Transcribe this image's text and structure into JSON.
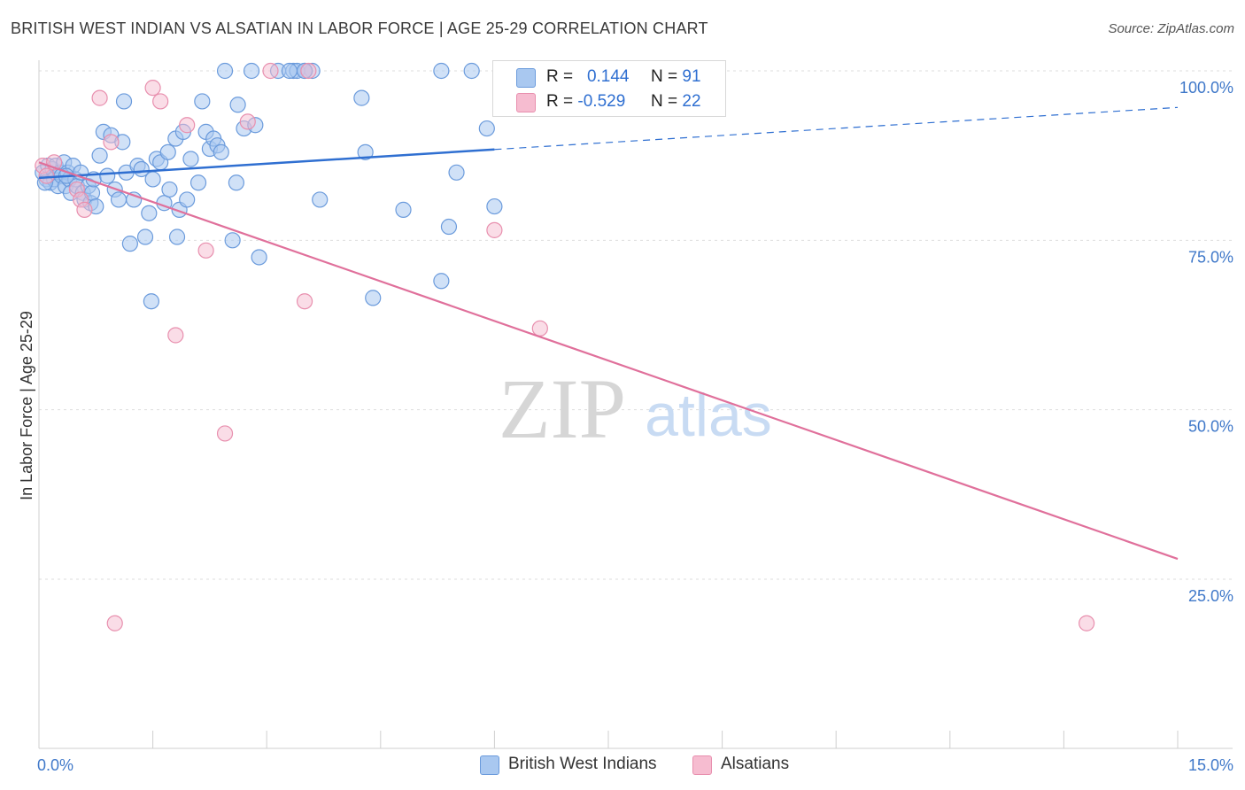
{
  "title": "BRITISH WEST INDIAN VS ALSATIAN IN LABOR FORCE | AGE 25-29 CORRELATION CHART",
  "source": "Source: ZipAtlas.com",
  "watermark": {
    "zip": "ZIP",
    "atlas": "atlas"
  },
  "colors": {
    "blue_fill": "#a9c8f0",
    "blue_stroke": "#6b9bdc",
    "blue_line": "#2f6fd1",
    "pink_fill": "#f6bcd0",
    "pink_stroke": "#e88fae",
    "pink_line": "#e0709b",
    "axis_text": "#3f78c9",
    "grid": "#dddddd"
  },
  "legend": {
    "series1": {
      "r_label": "R =",
      "r_value": "0.144",
      "n_label": "N =",
      "n_value": "91"
    },
    "series2": {
      "r_label": "R =",
      "r_value": "-0.529",
      "n_label": "N =",
      "n_value": "22"
    }
  },
  "bottom_legend": [
    "British West Indians",
    "Alsatians"
  ],
  "chart_data": {
    "type": "scatter",
    "title": "BRITISH WEST INDIAN VS ALSATIAN IN LABOR FORCE | AGE 25-29 CORRELATION CHART",
    "xlabel": "",
    "ylabel": "In Labor Force | Age 25-29",
    "xlim": [
      0,
      15
    ],
    "ylim": [
      0,
      105
    ],
    "x_tick_labels": [
      "0.0%",
      "15.0%"
    ],
    "y_ticks": [
      25,
      50,
      75,
      100
    ],
    "y_tick_labels": [
      "25.0%",
      "50.0%",
      "75.0%",
      "100.0%"
    ],
    "legend_position": "top-center",
    "grid": true,
    "series": [
      {
        "name": "British West Indians",
        "R": 0.144,
        "N": 91,
        "trend": {
          "x0": 0,
          "y0": 84.2,
          "x1": 6.0,
          "y1": 88.4,
          "dashed_to_x": 15,
          "dashed_to_y": 94.6
        },
        "points": [
          [
            0.05,
            85
          ],
          [
            0.1,
            84
          ],
          [
            0.12,
            86
          ],
          [
            0.15,
            83.5
          ],
          [
            0.18,
            85.5
          ],
          [
            0.2,
            84
          ],
          [
            0.22,
            86
          ],
          [
            0.25,
            83
          ],
          [
            0.28,
            85
          ],
          [
            0.3,
            84.5
          ],
          [
            0.33,
            86.5
          ],
          [
            0.35,
            83
          ],
          [
            0.38,
            85
          ],
          [
            0.4,
            84
          ],
          [
            0.42,
            82
          ],
          [
            0.45,
            86
          ],
          [
            0.48,
            84
          ],
          [
            0.5,
            83
          ],
          [
            0.55,
            85
          ],
          [
            0.58,
            82
          ],
          [
            0.6,
            81
          ],
          [
            0.65,
            83
          ],
          [
            0.68,
            80.5
          ],
          [
            0.7,
            82
          ],
          [
            0.72,
            84
          ],
          [
            0.75,
            80
          ],
          [
            0.8,
            87.5
          ],
          [
            0.85,
            91
          ],
          [
            0.9,
            84.5
          ],
          [
            0.95,
            90.5
          ],
          [
            1.0,
            82.5
          ],
          [
            1.05,
            81
          ],
          [
            1.1,
            89.5
          ],
          [
            1.12,
            95.5
          ],
          [
            1.15,
            85
          ],
          [
            1.2,
            74.5
          ],
          [
            1.25,
            81
          ],
          [
            1.3,
            86
          ],
          [
            1.35,
            85.5
          ],
          [
            1.4,
            75.5
          ],
          [
            1.45,
            79
          ],
          [
            1.48,
            66
          ],
          [
            1.5,
            84
          ],
          [
            1.55,
            87
          ],
          [
            1.6,
            86.5
          ],
          [
            1.65,
            80.5
          ],
          [
            1.7,
            88
          ],
          [
            1.72,
            82.5
          ],
          [
            1.8,
            90
          ],
          [
            1.82,
            75.5
          ],
          [
            1.85,
            79.5
          ],
          [
            1.9,
            91
          ],
          [
            1.95,
            81
          ],
          [
            2.0,
            87
          ],
          [
            2.1,
            83.5
          ],
          [
            2.15,
            95.5
          ],
          [
            2.2,
            91
          ],
          [
            2.25,
            88.5
          ],
          [
            2.3,
            90
          ],
          [
            2.35,
            89
          ],
          [
            2.4,
            88
          ],
          [
            2.45,
            100
          ],
          [
            2.55,
            75
          ],
          [
            2.6,
            83.5
          ],
          [
            2.62,
            95
          ],
          [
            2.7,
            91.5
          ],
          [
            2.8,
            100
          ],
          [
            2.85,
            92
          ],
          [
            2.9,
            72.5
          ],
          [
            3.6,
            100
          ],
          [
            3.15,
            100
          ],
          [
            3.35,
            100
          ],
          [
            3.4,
            100
          ],
          [
            3.5,
            100
          ],
          [
            3.3,
            100
          ],
          [
            3.7,
            81
          ],
          [
            4.25,
            96
          ],
          [
            4.3,
            88
          ],
          [
            4.4,
            66.5
          ],
          [
            5.3,
            100
          ],
          [
            4.8,
            79.5
          ],
          [
            6.0,
            80
          ],
          [
            5.9,
            91.5
          ],
          [
            5.7,
            100
          ],
          [
            5.5,
            85
          ],
          [
            5.3,
            69
          ],
          [
            5.4,
            77
          ],
          [
            3.5,
            100
          ],
          [
            0.08,
            83.5
          ],
          [
            0.36,
            84.5
          ]
        ]
      },
      {
        "name": "Alsatians",
        "R": -0.529,
        "N": 22,
        "trend": {
          "x0": 0,
          "y0": 86.5,
          "x1": 15,
          "y1": 28
        },
        "points": [
          [
            0.05,
            86
          ],
          [
            0.1,
            84.5
          ],
          [
            0.2,
            86.5
          ],
          [
            0.5,
            82.5
          ],
          [
            0.55,
            81
          ],
          [
            0.6,
            79.5
          ],
          [
            0.8,
            96
          ],
          [
            0.95,
            89.5
          ],
          [
            1.0,
            18.5
          ],
          [
            1.5,
            97.5
          ],
          [
            1.6,
            95.5
          ],
          [
            1.8,
            61
          ],
          [
            1.95,
            92
          ],
          [
            2.2,
            73.5
          ],
          [
            2.45,
            46.5
          ],
          [
            2.75,
            92.5
          ],
          [
            3.05,
            100
          ],
          [
            3.55,
            100
          ],
          [
            3.5,
            66
          ],
          [
            6.0,
            76.5
          ],
          [
            6.6,
            62
          ],
          [
            13.8,
            18.5
          ]
        ]
      }
    ]
  }
}
